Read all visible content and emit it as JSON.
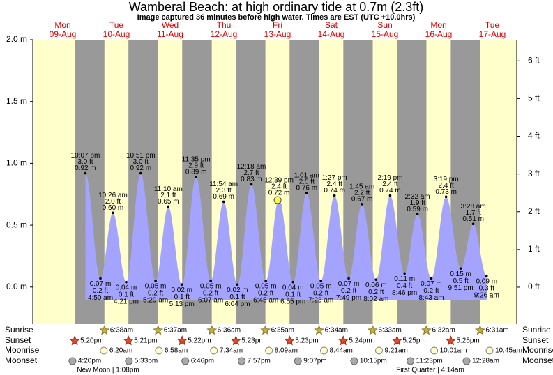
{
  "header": {
    "title": "Wamberal Beach: at high  ordinary tide at 0.7m (2.3ft)",
    "subtitle": "Image captured 36 minutes before high water. Times are EST (UTC +10.0hrs)"
  },
  "chart_data": {
    "type": "tide",
    "days": [
      {
        "name": "Mon",
        "date": "09-Aug"
      },
      {
        "name": "Tue",
        "date": "10-Aug"
      },
      {
        "name": "Wed",
        "date": "11-Aug"
      },
      {
        "name": "Thu",
        "date": "12-Aug"
      },
      {
        "name": "Fri",
        "date": "13-Aug"
      },
      {
        "name": "Sat",
        "date": "14-Aug"
      },
      {
        "name": "Sun",
        "date": "15-Aug"
      },
      {
        "name": "Mon",
        "date": "16-Aug"
      },
      {
        "name": "Tue",
        "date": "17-Aug"
      }
    ],
    "ylim": [
      -0.3,
      2.0
    ],
    "yticks": [
      {
        "value": 0,
        "label": "0.0 m"
      },
      {
        "value": 0.5,
        "label": "0.5 m"
      },
      {
        "value": 1,
        "label": "1.0 m"
      },
      {
        "value": 1.5,
        "label": "1.5 m"
      },
      {
        "value": 2,
        "label": "2.0 m"
      }
    ],
    "y2lim": [
      -0.98,
      6.56
    ],
    "y2ticks": [
      {
        "value": 0,
        "label": "0 ft"
      },
      {
        "value": 1,
        "label": "1 ft"
      },
      {
        "value": 2,
        "label": "2 ft"
      },
      {
        "value": 3,
        "label": "3 ft"
      },
      {
        "value": 4,
        "label": "4 ft"
      },
      {
        "value": 5,
        "label": "5 ft"
      },
      {
        "value": 6,
        "label": "6 ft"
      }
    ],
    "colors": {
      "day": "#ffffcc",
      "night": "#999999"
    },
    "tides": {
      "color": "#a4a4ff",
      "times": [
        "10:07 pm",
        "4:50 am",
        "10:26 am",
        "4:21 pm",
        "10:51 pm",
        "5:29 am",
        "11:10 am",
        "5:13 pm",
        "11:35 pm",
        "6:07 am",
        "11:54 am",
        "6:04 pm",
        "12:18 am",
        "6:45 am",
        "12:39 pm",
        "6:55 pm",
        "1:01 am",
        "7:23 am",
        "1:27 pm",
        "7:49 pm",
        "1:45 am",
        "8:02 am",
        "2:19 pm",
        "8:46 pm",
        "2:32 am",
        "8:43 am",
        "3:19 pm",
        "9:51 pm",
        "3:28 am",
        "9:26 am"
      ],
      "values": [
        0.92,
        0.07,
        0.6,
        0.04,
        0.92,
        0.05,
        0.65,
        0.02,
        0.89,
        0.05,
        0.69,
        0.02,
        0.83,
        0.05,
        0.72,
        0.04,
        0.76,
        0.05,
        0.74,
        0.07,
        0.67,
        0.06,
        0.74,
        0.11,
        0.59,
        0.07,
        0.73,
        0.15,
        0.51,
        0.09
      ],
      "value_labels": [
        "0.92 m",
        "0.07 m",
        "0.60 m",
        "0.04 m",
        "0.92 m",
        "0.05 m",
        "0.65 m",
        "0.02 m",
        "0.89 m",
        "0.05 m",
        "0.69 m",
        "0.02 m",
        "0.83 m",
        "0.05 m",
        "0.72 m",
        "0.04 m",
        "0.76 m",
        "0.05 m",
        "0.74 m",
        "0.07 m",
        "0.67 m",
        "0.06 m",
        "0.74 m",
        "0.11 m",
        "0.59 m",
        "0.07 m",
        "0.73 m",
        "0.15 m",
        "0.51 m",
        "0.09 m"
      ],
      "ft_labels": [
        "3.0 ft",
        "0.2 ft",
        "2.0 ft",
        "0.1 ft",
        "3.0 ft",
        "0.2 ft",
        "2.1 ft",
        "0.1 ft",
        "2.9 ft",
        "0.2 ft",
        "2.3 ft",
        "0.1 ft",
        "2.7 ft",
        "0.2 ft",
        "2.4 ft",
        "0.1 ft",
        "2.5 ft",
        "0.2 ft",
        "2.4 ft",
        "0.2 ft",
        "2.2 ft",
        "0.2 ft",
        "2.4 ft",
        "0.4 ft",
        "1.9 ft",
        "0.2 ft",
        "2.4 ft",
        "0.5 ft",
        "1.7 ft",
        "0.3 ft"
      ]
    },
    "rows": [
      {
        "name": "Sunrise",
        "icon": "star",
        "fill": "#c8b040",
        "stroke": "#8a7a20",
        "times": [
          null,
          "6:38am",
          "6:37am",
          "6:36am",
          "6:35am",
          "6:34am",
          "6:33am",
          "6:32am",
          "6:31am"
        ]
      },
      {
        "name": "Sunset",
        "icon": "star",
        "fill": "#e04a2a",
        "stroke": "#a02a10",
        "times": [
          "5:20pm",
          "5:21pm",
          "5:22pm",
          "5:23pm",
          "5:23pm",
          "5:24pm",
          "5:25pm",
          "5:25pm",
          null
        ]
      },
      {
        "name": "Moonrise",
        "icon": "circle",
        "fill": "#ffffcc",
        "stroke": "#888888",
        "times": [
          null,
          "6:20am",
          "6:58am",
          "7:34am",
          "8:09am",
          "8:44am",
          "9:21am",
          "10:01am",
          "10:45am"
        ]
      },
      {
        "name": "Moonset",
        "icon": "circle",
        "fill": "#aaaaaa",
        "stroke": "#666666",
        "times": [
          "4:20pm",
          "5:33pm",
          "6:46pm",
          "7:57pm",
          "9:07pm",
          "10:15pm",
          "11:23pm",
          null,
          "12:28am"
        ]
      }
    ],
    "moon_phases": [
      null,
      "New Moon | 1:08pm",
      null,
      null,
      null,
      null,
      null,
      "First Quarter | 4:14am",
      null
    ]
  }
}
